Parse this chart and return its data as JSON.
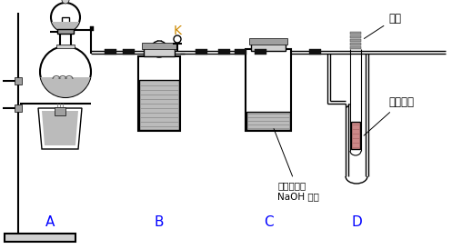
{
  "bg": "#ffffff",
  "lc": "#000000",
  "label_A": "A",
  "label_B": "B",
  "label_C": "C",
  "label_D": "D",
  "label_K": "K",
  "label_cotton": "棉花",
  "label_fuchsin": "品红溶液",
  "label_naoh": "滴有酚酞的\nNaOH 溶液",
  "gray1": "#d0d0d0",
  "gray2": "#a0a0a0",
  "gray3": "#808080",
  "black_clamp": "#111111",
  "liquid_gray": "#bbbbbb",
  "liquid_line": "#888888",
  "pink": "#cc8888"
}
